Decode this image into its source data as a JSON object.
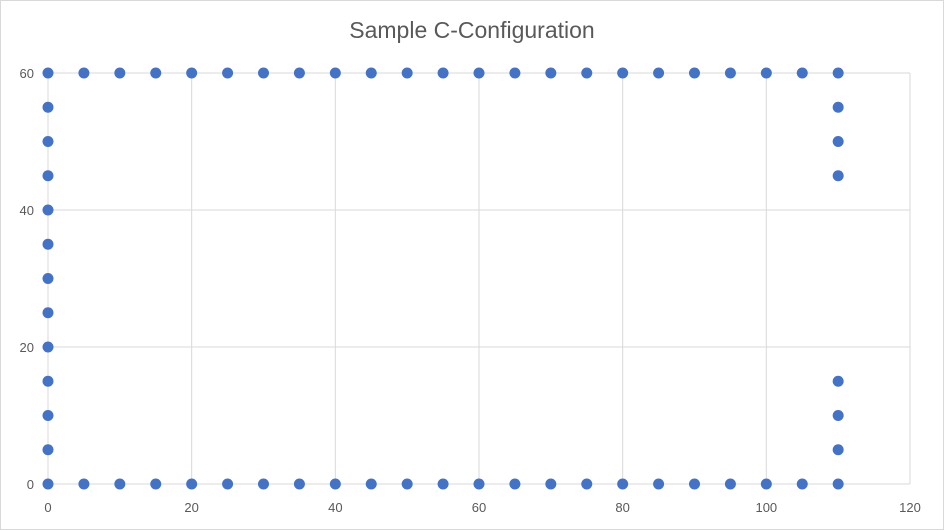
{
  "chart_data": {
    "type": "scatter",
    "title": "Sample C-Configuration",
    "xlabel": "",
    "ylabel": "",
    "xlim": [
      0,
      120
    ],
    "ylim": [
      0,
      60
    ],
    "x_ticks": [
      "0",
      "20",
      "40",
      "60",
      "80",
      "100",
      "120"
    ],
    "y_ticks": [
      "0",
      "20",
      "40",
      "60"
    ],
    "grid": true,
    "legend": "none",
    "marker_color": "#4472c4",
    "grid_color": "#d9d9d9",
    "series": [
      {
        "points": [
          [
            0,
            0
          ],
          [
            0,
            5
          ],
          [
            0,
            10
          ],
          [
            0,
            15
          ],
          [
            0,
            20
          ],
          [
            0,
            25
          ],
          [
            0,
            30
          ],
          [
            0,
            35
          ],
          [
            0,
            40
          ],
          [
            0,
            45
          ],
          [
            0,
            50
          ],
          [
            0,
            55
          ],
          [
            0,
            60
          ],
          [
            5,
            60
          ],
          [
            10,
            60
          ],
          [
            15,
            60
          ],
          [
            20,
            60
          ],
          [
            25,
            60
          ],
          [
            30,
            60
          ],
          [
            35,
            60
          ],
          [
            40,
            60
          ],
          [
            45,
            60
          ],
          [
            50,
            60
          ],
          [
            55,
            60
          ],
          [
            60,
            60
          ],
          [
            65,
            60
          ],
          [
            70,
            60
          ],
          [
            75,
            60
          ],
          [
            80,
            60
          ],
          [
            85,
            60
          ],
          [
            90,
            60
          ],
          [
            95,
            60
          ],
          [
            100,
            60
          ],
          [
            105,
            60
          ],
          [
            110,
            60
          ],
          [
            110,
            55
          ],
          [
            110,
            50
          ],
          [
            110,
            45
          ],
          [
            110,
            15
          ],
          [
            110,
            10
          ],
          [
            110,
            5
          ],
          [
            110,
            0
          ],
          [
            5,
            0
          ],
          [
            10,
            0
          ],
          [
            15,
            0
          ],
          [
            20,
            0
          ],
          [
            25,
            0
          ],
          [
            30,
            0
          ],
          [
            35,
            0
          ],
          [
            40,
            0
          ],
          [
            45,
            0
          ],
          [
            50,
            0
          ],
          [
            55,
            0
          ],
          [
            60,
            0
          ],
          [
            65,
            0
          ],
          [
            70,
            0
          ],
          [
            75,
            0
          ],
          [
            80,
            0
          ],
          [
            85,
            0
          ],
          [
            90,
            0
          ],
          [
            95,
            0
          ],
          [
            100,
            0
          ],
          [
            105,
            0
          ]
        ]
      }
    ]
  }
}
